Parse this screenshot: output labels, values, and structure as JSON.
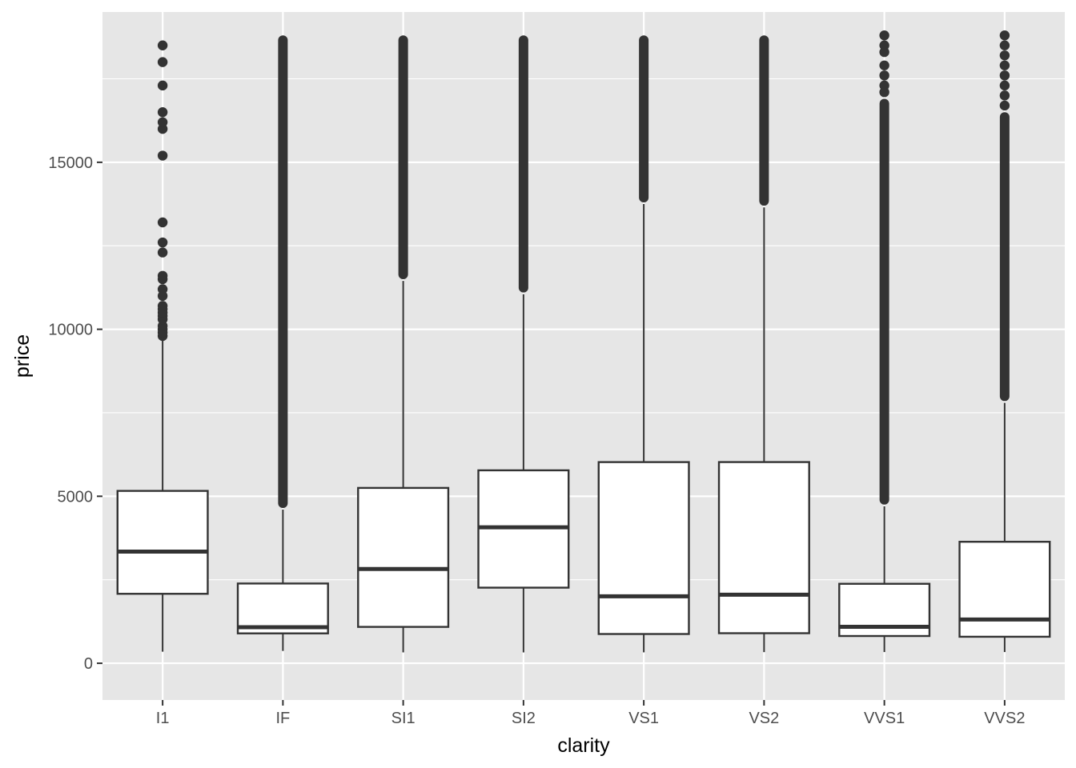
{
  "chart_data": {
    "type": "boxplot",
    "title": "",
    "xlabel": "clarity",
    "ylabel": "price",
    "ylim": [
      -1100,
      19500
    ],
    "y_ticks": [
      0,
      5000,
      10000,
      15000
    ],
    "y_tick_labels": [
      "0",
      "5000",
      "10000",
      "15000"
    ],
    "grid": true,
    "background": "#e6e6e6",
    "grid_color": "#ffffff",
    "box_fill": "#ffffff",
    "stroke_color": "#333333",
    "categories": [
      "I1",
      "IF",
      "SI1",
      "SI2",
      "VS1",
      "VS2",
      "VVS1",
      "VVS2"
    ],
    "boxes": [
      {
        "category": "I1",
        "whisker_low": 345,
        "q1": 2080,
        "median": 3344,
        "q3": 5161,
        "whisker_high": 9700,
        "outliers": [
          9800,
          9900,
          10000,
          10100,
          10300,
          10400,
          10500,
          10600,
          10700,
          11000,
          11200,
          11500,
          11600,
          12300,
          12600,
          13200,
          15200,
          16000,
          16200,
          16500,
          17300,
          18000,
          18500
        ]
      },
      {
        "category": "IF",
        "whisker_low": 369,
        "q1": 895,
        "median": 1080,
        "q3": 2388,
        "whisker_high": 4600,
        "outlier_bands": [
          [
            4650,
            18800
          ]
        ]
      },
      {
        "category": "SI1",
        "whisker_low": 326,
        "q1": 1089,
        "median": 2822,
        "q3": 5250,
        "whisker_high": 11450,
        "outlier_bands": [
          [
            11500,
            18800
          ]
        ]
      },
      {
        "category": "SI2",
        "whisker_low": 326,
        "q1": 2264,
        "median": 4072,
        "q3": 5777,
        "whisker_high": 11050,
        "outlier_bands": [
          [
            11100,
            18800
          ]
        ]
      },
      {
        "category": "VS1",
        "whisker_low": 327,
        "q1": 876,
        "median": 2005,
        "q3": 6023,
        "whisker_high": 13750,
        "outlier_bands": [
          [
            13800,
            18800
          ]
        ]
      },
      {
        "category": "VS2",
        "whisker_low": 334,
        "q1": 900,
        "median": 2054,
        "q3": 6024,
        "whisker_high": 13650,
        "outlier_bands": [
          [
            13700,
            18800
          ]
        ]
      },
      {
        "category": "VVS1",
        "whisker_low": 336,
        "q1": 816,
        "median": 1093,
        "q3": 2379,
        "whisker_high": 4700,
        "outlier_bands": [
          [
            4750,
            16900
          ]
        ],
        "outliers": [
          17100,
          17300,
          17600,
          17900,
          18300,
          18500,
          18800
        ]
      },
      {
        "category": "VVS2",
        "whisker_low": 336,
        "q1": 794,
        "median": 1311,
        "q3": 3638,
        "whisker_high": 7800,
        "outlier_bands": [
          [
            7850,
            16500
          ]
        ],
        "outliers": [
          16700,
          17000,
          17300,
          17600,
          17900,
          18200,
          18500,
          18800
        ]
      }
    ]
  }
}
